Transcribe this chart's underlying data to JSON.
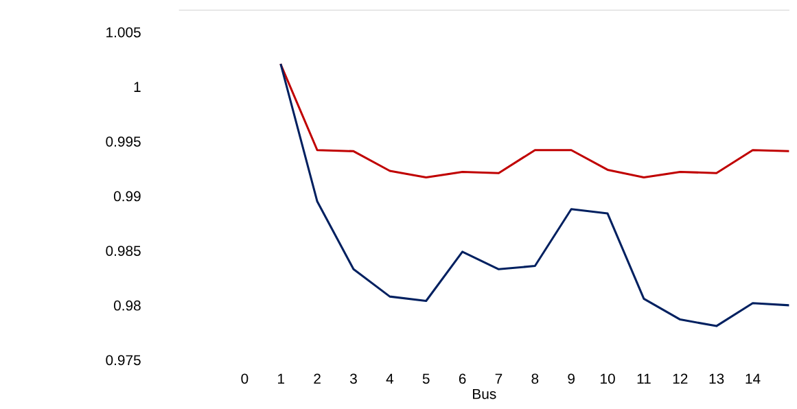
{
  "chart_data": {
    "type": "line",
    "xlabel": "Bus",
    "x": [
      1,
      2,
      3,
      4,
      5,
      6,
      7,
      8,
      9,
      10,
      11,
      12,
      13,
      14,
      15
    ],
    "series": [
      {
        "color": "#c00000",
        "values": [
          1.002,
          0.9942,
          0.9941,
          0.9923,
          0.9917,
          0.9922,
          0.9921,
          0.9942,
          0.9942,
          0.9924,
          0.9917,
          0.9922,
          0.9921,
          0.9942,
          0.9941
        ]
      },
      {
        "color": "#002060",
        "values": [
          1.002,
          0.9895,
          0.9833,
          0.9808,
          0.9804,
          0.9849,
          0.9833,
          0.9836,
          0.9888,
          0.9884,
          0.9806,
          0.9787,
          0.9781,
          0.9802,
          0.98
        ]
      }
    ],
    "xlim": [
      -1.8,
      15
    ],
    "xticks": [
      0,
      1,
      2,
      3,
      4,
      5,
      6,
      7,
      8,
      9,
      10,
      11,
      12,
      13,
      14
    ],
    "ylim": [
      0.975,
      1.007
    ],
    "yticks": [
      0.975,
      0.98,
      0.985,
      0.99,
      0.995,
      1,
      1.005
    ],
    "grid": false,
    "marker": "none",
    "line_style": "solid"
  }
}
